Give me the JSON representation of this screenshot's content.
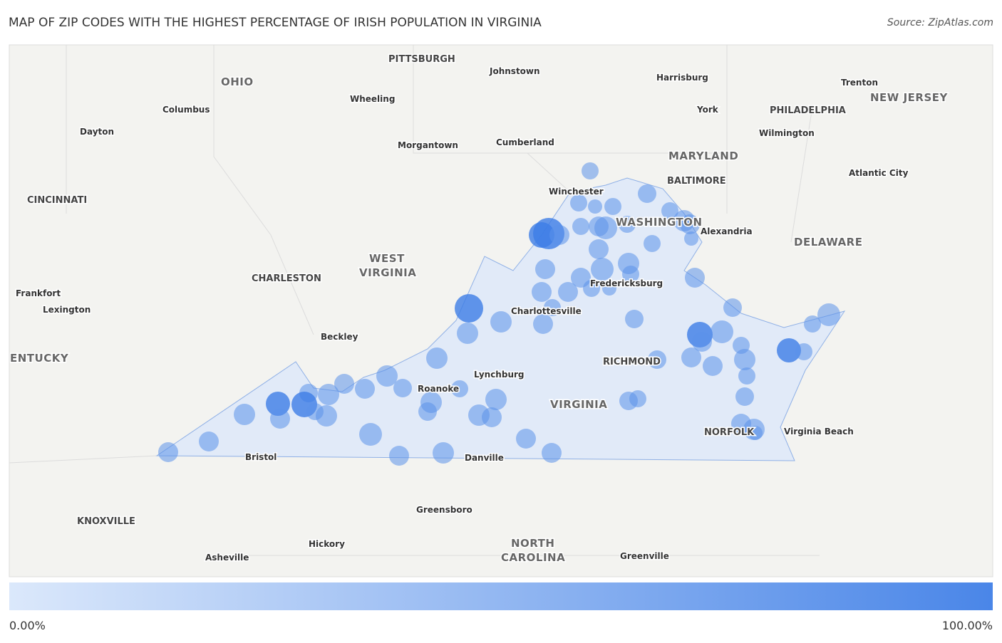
{
  "header": {
    "title": "MAP OF ZIP CODES WITH THE HIGHEST PERCENTAGE OF IRISH POPULATION IN VIRGINIA",
    "source": "Source: ZipAtlas.com"
  },
  "map": {
    "labels": [
      "PITTSBURGH",
      "Johnstown",
      "OHIO",
      "Harrisburg",
      "Trenton",
      "NEW JERSEY",
      "Wheeling",
      "Columbus",
      "York",
      "PHILADELPHIA",
      "Dayton",
      "Wilmington",
      "Cumberland",
      "Morgantown",
      "MARYLAND",
      "Atlantic City",
      "BALTIMORE",
      "Winchester",
      "CINCINNATI",
      "WASHINGTON",
      "Alexandria",
      "DELAWARE",
      "WEST",
      "VIRGINIA",
      "CHARLESTON",
      "Fredericksburg",
      "Frankfort",
      "Lexington",
      "Charlottesville",
      "Beckley",
      "ENTUCKY",
      "RICHMOND",
      "Lynchburg",
      "Roanoke",
      "VIRGINIA",
      "NORFOLK",
      "Virginia Beach",
      "Bristol",
      "Danville",
      "Greensboro",
      "KNOXVILLE",
      "NORTH",
      "CAROLINA",
      "Hickory",
      "Asheville",
      "Greenville"
    ]
  },
  "legend": {
    "min": "0.00%",
    "max": "100.00%"
  }
}
